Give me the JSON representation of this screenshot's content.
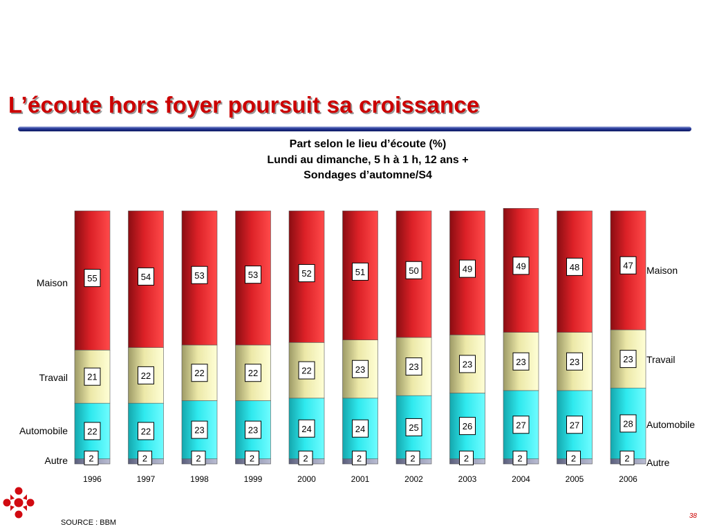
{
  "slide": {
    "title": "L’écoute hors foyer poursuit sa croissance",
    "subtitle_lines": [
      "Part selon le lieu d’écoute (%)",
      "Lundi au dimanche, 5 h à 1 h, 12 ans +",
      "Sondages d’automne/S4"
    ],
    "source": "SOURCE : BBM",
    "page_number": "38"
  },
  "colors": {
    "title": "#cc0000",
    "rule": "#1b2a8a",
    "Maison": "#e8242a",
    "Travail": "#f5f2b0",
    "Automobile": "#2fe9ee",
    "Autre": "#8f93ad"
  },
  "chart_data": {
    "type": "bar",
    "stacked": true,
    "categories": [
      "1996",
      "1997",
      "1998",
      "1999",
      "2000",
      "2001",
      "2002",
      "2003",
      "2004",
      "2005",
      "2006"
    ],
    "series": [
      {
        "name": "Autre",
        "values": [
          2,
          2,
          2,
          2,
          2,
          2,
          2,
          2,
          2,
          2,
          2
        ]
      },
      {
        "name": "Automobile",
        "values": [
          22,
          22,
          23,
          23,
          24,
          24,
          25,
          26,
          27,
          27,
          28
        ]
      },
      {
        "name": "Travail",
        "values": [
          21,
          22,
          22,
          22,
          22,
          23,
          23,
          23,
          23,
          23,
          23
        ]
      },
      {
        "name": "Maison",
        "values": [
          55,
          54,
          53,
          53,
          52,
          51,
          50,
          49,
          49,
          48,
          47
        ]
      }
    ],
    "legend_left": [
      "Maison",
      "Travail",
      "Automobile",
      "Autre"
    ],
    "legend_right": [
      "Maison",
      "Travail",
      "Automobile",
      "Autre"
    ],
    "units": "%",
    "grid": false
  }
}
